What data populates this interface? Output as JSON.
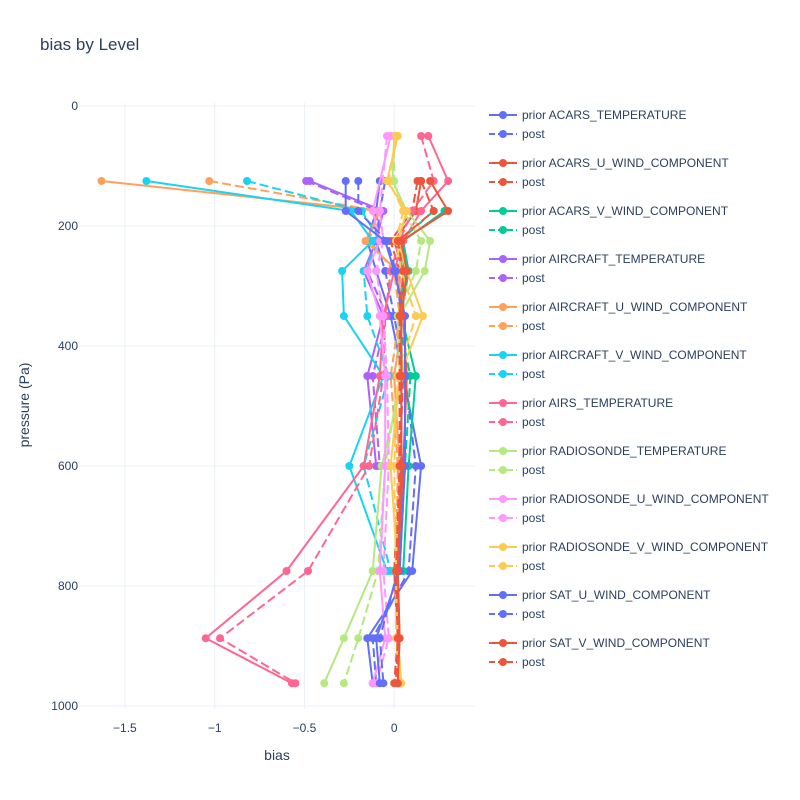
{
  "chart_data": {
    "type": "line",
    "title": "bias by Level",
    "xlabel": "bias",
    "ylabel": "pressure (Pa)",
    "xlim": [
      -1.75,
      0.45
    ],
    "ylim": [
      1005,
      -5
    ],
    "y_reversed": true,
    "x_ticks": [
      -1.5,
      -1,
      -0.5,
      0
    ],
    "x_tick_labels": [
      "−1.5",
      "−1",
      "−0.5",
      "0"
    ],
    "y_ticks": [
      0,
      200,
      400,
      600,
      800,
      1000
    ],
    "y_tick_labels": [
      "0",
      "200",
      "400",
      "600",
      "800",
      "1000"
    ],
    "grid": true,
    "legend": "right",
    "series": [
      {
        "name": "prior ACARS_TEMPERATURE",
        "color": "#636efa",
        "dash": "solid",
        "points": [
          [
            -0.08,
            125
          ],
          [
            -0.1,
            175
          ],
          [
            -0.15,
            225
          ],
          [
            -0.1,
            275
          ],
          [
            -0.02,
            350
          ],
          [
            0.05,
            450
          ],
          [
            0.15,
            600
          ],
          [
            0.1,
            775
          ],
          [
            -0.15,
            887
          ],
          [
            -0.12,
            962
          ]
        ]
      },
      {
        "name": "post",
        "color": "#636efa",
        "dash": "dash",
        "points": [
          [
            -0.05,
            125
          ],
          [
            -0.08,
            175
          ],
          [
            -0.1,
            225
          ],
          [
            -0.05,
            275
          ],
          [
            0,
            350
          ],
          [
            0.06,
            450
          ],
          [
            0.12,
            600
          ],
          [
            0.08,
            775
          ],
          [
            -0.12,
            887
          ],
          [
            -0.1,
            962
          ]
        ]
      },
      {
        "name": "prior ACARS_U_WIND_COMPONENT",
        "color": "#EF553B",
        "dash": "solid",
        "points": [
          [
            0.15,
            125
          ],
          [
            0.12,
            175
          ],
          [
            0,
            225
          ],
          [
            0.05,
            275
          ],
          [
            0.05,
            350
          ],
          [
            0.07,
            450
          ],
          [
            0.05,
            600
          ],
          [
            0.02,
            775
          ],
          [
            0.03,
            887
          ],
          [
            0.02,
            962
          ]
        ]
      },
      {
        "name": "post",
        "color": "#EF553B",
        "dash": "dash",
        "points": [
          [
            0.13,
            125
          ],
          [
            0.1,
            175
          ],
          [
            -0.02,
            225
          ],
          [
            0.03,
            275
          ],
          [
            0.03,
            350
          ],
          [
            0.05,
            450
          ],
          [
            0.03,
            600
          ],
          [
            0,
            775
          ],
          [
            0.02,
            887
          ],
          [
            0,
            962
          ]
        ]
      },
      {
        "name": "prior ACARS_V_WIND_COMPONENT",
        "color": "#00cc96",
        "dash": "solid",
        "points": [
          [
            0.28,
            175
          ],
          [
            0.05,
            225
          ],
          [
            0.08,
            275
          ],
          [
            0.04,
            350
          ],
          [
            0.12,
            450
          ],
          [
            0.08,
            600
          ],
          [
            0.05,
            775
          ]
        ]
      },
      {
        "name": "post",
        "color": "#00cc96",
        "dash": "dash",
        "points": [
          [
            0.22,
            175
          ],
          [
            0.03,
            225
          ],
          [
            0.06,
            275
          ],
          [
            0.02,
            350
          ],
          [
            0.09,
            450
          ],
          [
            0.06,
            600
          ],
          [
            0.03,
            775
          ]
        ]
      },
      {
        "name": "prior AIRCRAFT_TEMPERATURE",
        "color": "#ab63fa",
        "dash": "solid",
        "points": [
          [
            -0.47,
            125
          ],
          [
            -0.06,
            175
          ],
          [
            -0.1,
            225
          ],
          [
            -0.17,
            275
          ],
          [
            -0.06,
            350
          ],
          [
            -0.15,
            450
          ],
          [
            -0.1,
            600
          ]
        ]
      },
      {
        "name": "post",
        "color": "#ab63fa",
        "dash": "dash",
        "points": [
          [
            -0.49,
            125
          ],
          [
            -0.09,
            175
          ],
          [
            -0.11,
            225
          ],
          [
            -0.15,
            275
          ],
          [
            -0.04,
            350
          ],
          [
            -0.12,
            450
          ],
          [
            -0.08,
            600
          ]
        ]
      },
      {
        "name": "prior AIRCRAFT_U_WIND_COMPONENT",
        "color": "#FFA15A",
        "dash": "solid",
        "points": [
          [
            -1.63,
            125
          ],
          [
            -0.08,
            175
          ],
          [
            -0.16,
            225
          ],
          [
            0.02,
            275
          ],
          [
            0.05,
            350
          ],
          [
            0,
            450
          ],
          [
            0.03,
            600
          ],
          [
            0.02,
            775
          ]
        ]
      },
      {
        "name": "post",
        "color": "#FFA15A",
        "dash": "dash",
        "points": [
          [
            -1.03,
            125
          ],
          [
            -0.09,
            175
          ],
          [
            -0.14,
            225
          ],
          [
            0,
            275
          ],
          [
            0.03,
            350
          ],
          [
            -0.02,
            450
          ],
          [
            0.02,
            600
          ],
          [
            0.01,
            775
          ]
        ]
      },
      {
        "name": "prior AIRCRAFT_V_WIND_COMPONENT",
        "color": "#19d3f3",
        "dash": "solid",
        "points": [
          [
            -1.38,
            125
          ],
          [
            -0.24,
            175
          ],
          [
            -0.12,
            225
          ],
          [
            -0.29,
            275
          ],
          [
            -0.28,
            350
          ],
          [
            -0.06,
            450
          ],
          [
            -0.25,
            600
          ],
          [
            -0.04,
            775
          ]
        ]
      },
      {
        "name": "post",
        "color": "#19d3f3",
        "dash": "dash",
        "points": [
          [
            -0.82,
            125
          ],
          [
            -0.18,
            175
          ],
          [
            -0.08,
            225
          ],
          [
            -0.17,
            275
          ],
          [
            -0.15,
            350
          ],
          [
            -0.03,
            450
          ],
          [
            -0.17,
            600
          ],
          [
            -0.02,
            775
          ]
        ]
      },
      {
        "name": "prior AIRS_TEMPERATURE",
        "color": "#FF6692",
        "dash": "solid",
        "points": [
          [
            0.19,
            50
          ],
          [
            0.3,
            125
          ],
          [
            0.15,
            175
          ],
          [
            0.05,
            225
          ],
          [
            0,
            275
          ],
          [
            -0.06,
            350
          ],
          [
            -0.08,
            450
          ],
          [
            -0.17,
            600
          ],
          [
            -0.6,
            775
          ],
          [
            -1.05,
            887
          ],
          [
            -0.57,
            962
          ]
        ]
      },
      {
        "name": "post",
        "color": "#FF6692",
        "dash": "dash",
        "points": [
          [
            0.15,
            50
          ],
          [
            0.22,
            125
          ],
          [
            0.1,
            175
          ],
          [
            0.03,
            225
          ],
          [
            -0.02,
            275
          ],
          [
            -0.05,
            350
          ],
          [
            -0.06,
            450
          ],
          [
            -0.14,
            600
          ],
          [
            -0.48,
            775
          ],
          [
            -0.97,
            887
          ],
          [
            -0.55,
            962
          ]
        ]
      },
      {
        "name": "prior RADIOSONDE_TEMPERATURE",
        "color": "#B6E880",
        "dash": "solid",
        "points": [
          [
            0,
            50
          ],
          [
            -0.01,
            125
          ],
          [
            0.07,
            175
          ],
          [
            0.2,
            225
          ],
          [
            0.17,
            275
          ],
          [
            0.03,
            350
          ],
          [
            0.05,
            450
          ],
          [
            -0.07,
            600
          ],
          [
            -0.12,
            775
          ],
          [
            -0.28,
            887
          ],
          [
            -0.39,
            962
          ]
        ]
      },
      {
        "name": "post",
        "color": "#B6E880",
        "dash": "dash",
        "points": [
          [
            0,
            50
          ],
          [
            0,
            125
          ],
          [
            0.05,
            175
          ],
          [
            0.15,
            225
          ],
          [
            0.12,
            275
          ],
          [
            0.02,
            350
          ],
          [
            0.03,
            450
          ],
          [
            -0.05,
            600
          ],
          [
            -0.09,
            775
          ],
          [
            -0.2,
            887
          ],
          [
            -0.28,
            962
          ]
        ]
      },
      {
        "name": "prior RADIOSONDE_U_WIND_COMPONENT",
        "color": "#FF97FF",
        "dash": "solid",
        "points": [
          [
            -0.02,
            50
          ],
          [
            -0.12,
            175
          ],
          [
            -0.08,
            225
          ],
          [
            -0.15,
            275
          ],
          [
            -0.08,
            350
          ],
          [
            -0.05,
            450
          ],
          [
            -0.05,
            600
          ],
          [
            -0.08,
            775
          ],
          [
            -0.05,
            887
          ],
          [
            -0.12,
            962
          ]
        ]
      },
      {
        "name": "post",
        "color": "#FF97FF",
        "dash": "dash",
        "points": [
          [
            -0.04,
            50
          ],
          [
            -0.08,
            175
          ],
          [
            -0.06,
            225
          ],
          [
            -0.1,
            275
          ],
          [
            -0.06,
            350
          ],
          [
            -0.04,
            450
          ],
          [
            -0.03,
            600
          ],
          [
            -0.06,
            775
          ],
          [
            -0.03,
            887
          ],
          [
            -0.1,
            962
          ]
        ]
      },
      {
        "name": "prior RADIOSONDE_V_WIND_COMPONENT",
        "color": "#FECB52",
        "dash": "solid",
        "points": [
          [
            0.02,
            50
          ],
          [
            -0.04,
            125
          ],
          [
            0.07,
            175
          ],
          [
            0.02,
            225
          ],
          [
            0.07,
            275
          ],
          [
            0.16,
            350
          ],
          [
            0.03,
            450
          ],
          [
            -0.02,
            600
          ],
          [
            0.02,
            775
          ],
          [
            0.02,
            887
          ],
          [
            0.04,
            962
          ]
        ]
      },
      {
        "name": "post",
        "color": "#FECB52",
        "dash": "dash",
        "points": [
          [
            0.01,
            50
          ],
          [
            -0.03,
            125
          ],
          [
            0.05,
            175
          ],
          [
            0.01,
            225
          ],
          [
            0.04,
            275
          ],
          [
            0.12,
            350
          ],
          [
            0.02,
            450
          ],
          [
            0,
            600
          ],
          [
            0.01,
            775
          ],
          [
            0.01,
            887
          ],
          [
            0.03,
            962
          ]
        ]
      },
      {
        "name": "prior SAT_U_WIND_COMPONENT",
        "color": "#636efa",
        "dash": "solid",
        "points": [
          [
            -0.27,
            125
          ],
          [
            -0.27,
            175
          ],
          [
            -0.05,
            225
          ],
          [
            0,
            275
          ],
          [
            0.06,
            350
          ],
          [
            0.06,
            450
          ],
          [
            0.06,
            600
          ],
          [
            0.03,
            775
          ],
          [
            -0.1,
            887
          ],
          [
            -0.08,
            962
          ]
        ]
      },
      {
        "name": "post",
        "color": "#636efa",
        "dash": "dash",
        "points": [
          [
            -0.2,
            125
          ],
          [
            -0.2,
            175
          ],
          [
            -0.04,
            225
          ],
          [
            0.01,
            275
          ],
          [
            0.04,
            350
          ],
          [
            0.04,
            450
          ],
          [
            0.04,
            600
          ],
          [
            0.02,
            775
          ],
          [
            -0.08,
            887
          ],
          [
            -0.06,
            962
          ]
        ]
      },
      {
        "name": "prior SAT_V_WIND_COMPONENT",
        "color": "#EF553B",
        "dash": "solid",
        "points": [
          [
            0.2,
            125
          ],
          [
            0.3,
            175
          ],
          [
            0.04,
            225
          ],
          [
            0.07,
            275
          ],
          [
            0.04,
            350
          ],
          [
            0.04,
            450
          ],
          [
            0.04,
            600
          ],
          [
            0.02,
            775
          ],
          [
            0.03,
            887
          ],
          [
            0.02,
            962
          ]
        ]
      },
      {
        "name": "post",
        "color": "#EF553B",
        "dash": "dash",
        "points": [
          [
            0.15,
            125
          ],
          [
            0.22,
            175
          ],
          [
            0.02,
            225
          ],
          [
            0.05,
            275
          ],
          [
            0.03,
            350
          ],
          [
            0.03,
            450
          ],
          [
            0.03,
            600
          ],
          [
            0.01,
            775
          ],
          [
            0.02,
            887
          ],
          [
            0.01,
            962
          ]
        ]
      }
    ]
  }
}
